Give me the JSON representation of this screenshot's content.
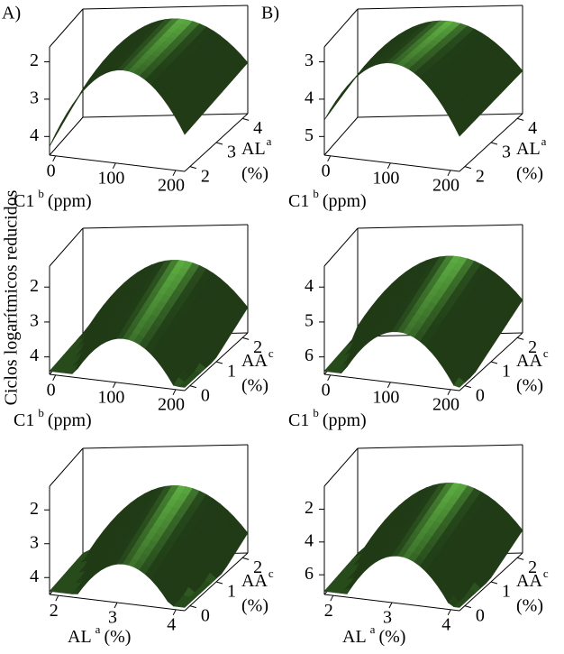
{
  "panel_labels": [
    "A)",
    "B)"
  ],
  "shared_zlabel": "Ciclos logarítmicos reducidos",
  "chart_data": [
    {
      "type": "surface",
      "xlabel": {
        "text": "C1",
        "sup": "b",
        "unit": "(ppm)"
      },
      "ylabel": {
        "text": "AL",
        "sup": "a",
        "unit": "(%)"
      },
      "xlim": [
        -10,
        215
      ],
      "xticks": [
        0,
        100,
        200
      ],
      "ylim": [
        1.8,
        4.2
      ],
      "yticks": [
        2,
        3,
        4
      ],
      "zlim": [
        4.5,
        1.6
      ],
      "zticks": [
        2,
        3,
        4
      ]
    },
    {
      "type": "surface",
      "xlabel": {
        "text": "C1",
        "sup": "b",
        "unit": "(ppm)"
      },
      "ylabel": {
        "text": "AL",
        "sup": "a",
        "unit": "(%)"
      },
      "xlim": [
        -10,
        215
      ],
      "xticks": [
        0,
        100,
        200
      ],
      "ylim": [
        1.8,
        4.2
      ],
      "yticks": [
        2,
        3,
        4
      ],
      "zlim": [
        5.5,
        2.6
      ],
      "zticks": [
        3,
        4,
        5
      ]
    },
    {
      "type": "surface",
      "xlabel": {
        "text": "C1",
        "sup": "b",
        "unit": "(ppm)"
      },
      "ylabel": {
        "text": "AA",
        "sup": "c",
        "unit": "(%)"
      },
      "xlim": [
        -10,
        215
      ],
      "xticks": [
        0,
        100,
        200
      ],
      "ylim": [
        -0.2,
        2.2
      ],
      "yticks": [
        0,
        1,
        2
      ],
      "zlim": [
        4.5,
        1.4
      ],
      "zticks": [
        2,
        3,
        4
      ]
    },
    {
      "type": "surface",
      "xlabel": {
        "text": "C1",
        "sup": "b",
        "unit": "(ppm)"
      },
      "ylabel": {
        "text": "AA",
        "sup": "c",
        "unit": "(%)"
      },
      "xlim": [
        -10,
        215
      ],
      "xticks": [
        0,
        100,
        200
      ],
      "ylim": [
        -0.2,
        2.2
      ],
      "yticks": [
        0,
        1,
        2
      ],
      "zlim": [
        6.5,
        3.4
      ],
      "zticks": [
        4,
        5,
        6
      ]
    },
    {
      "type": "surface",
      "xlabel": {
        "text": "AL",
        "sup": "a",
        "unit": "(%)"
      },
      "ylabel": {
        "text": "AA",
        "sup": "c",
        "unit": "(%)"
      },
      "xlim": [
        1.85,
        4.15
      ],
      "xticks": [
        2,
        3,
        4
      ],
      "ylim": [
        -0.2,
        2.2
      ],
      "yticks": [
        0,
        1,
        2
      ],
      "zlim": [
        4.5,
        1.3
      ],
      "zticks": [
        2,
        3,
        4
      ]
    },
    {
      "type": "surface",
      "xlabel": {
        "text": "AL",
        "sup": "a",
        "unit": "(%)"
      },
      "ylabel": {
        "text": "AA",
        "sup": "c",
        "unit": "(%)"
      },
      "xlim": [
        1.85,
        4.15
      ],
      "xticks": [
        2,
        3,
        4
      ],
      "ylim": [
        -0.2,
        2.2
      ],
      "yticks": [
        0,
        1,
        2
      ],
      "zlim": [
        7.2,
        0.6
      ],
      "zticks": [
        2,
        4,
        6
      ]
    }
  ]
}
